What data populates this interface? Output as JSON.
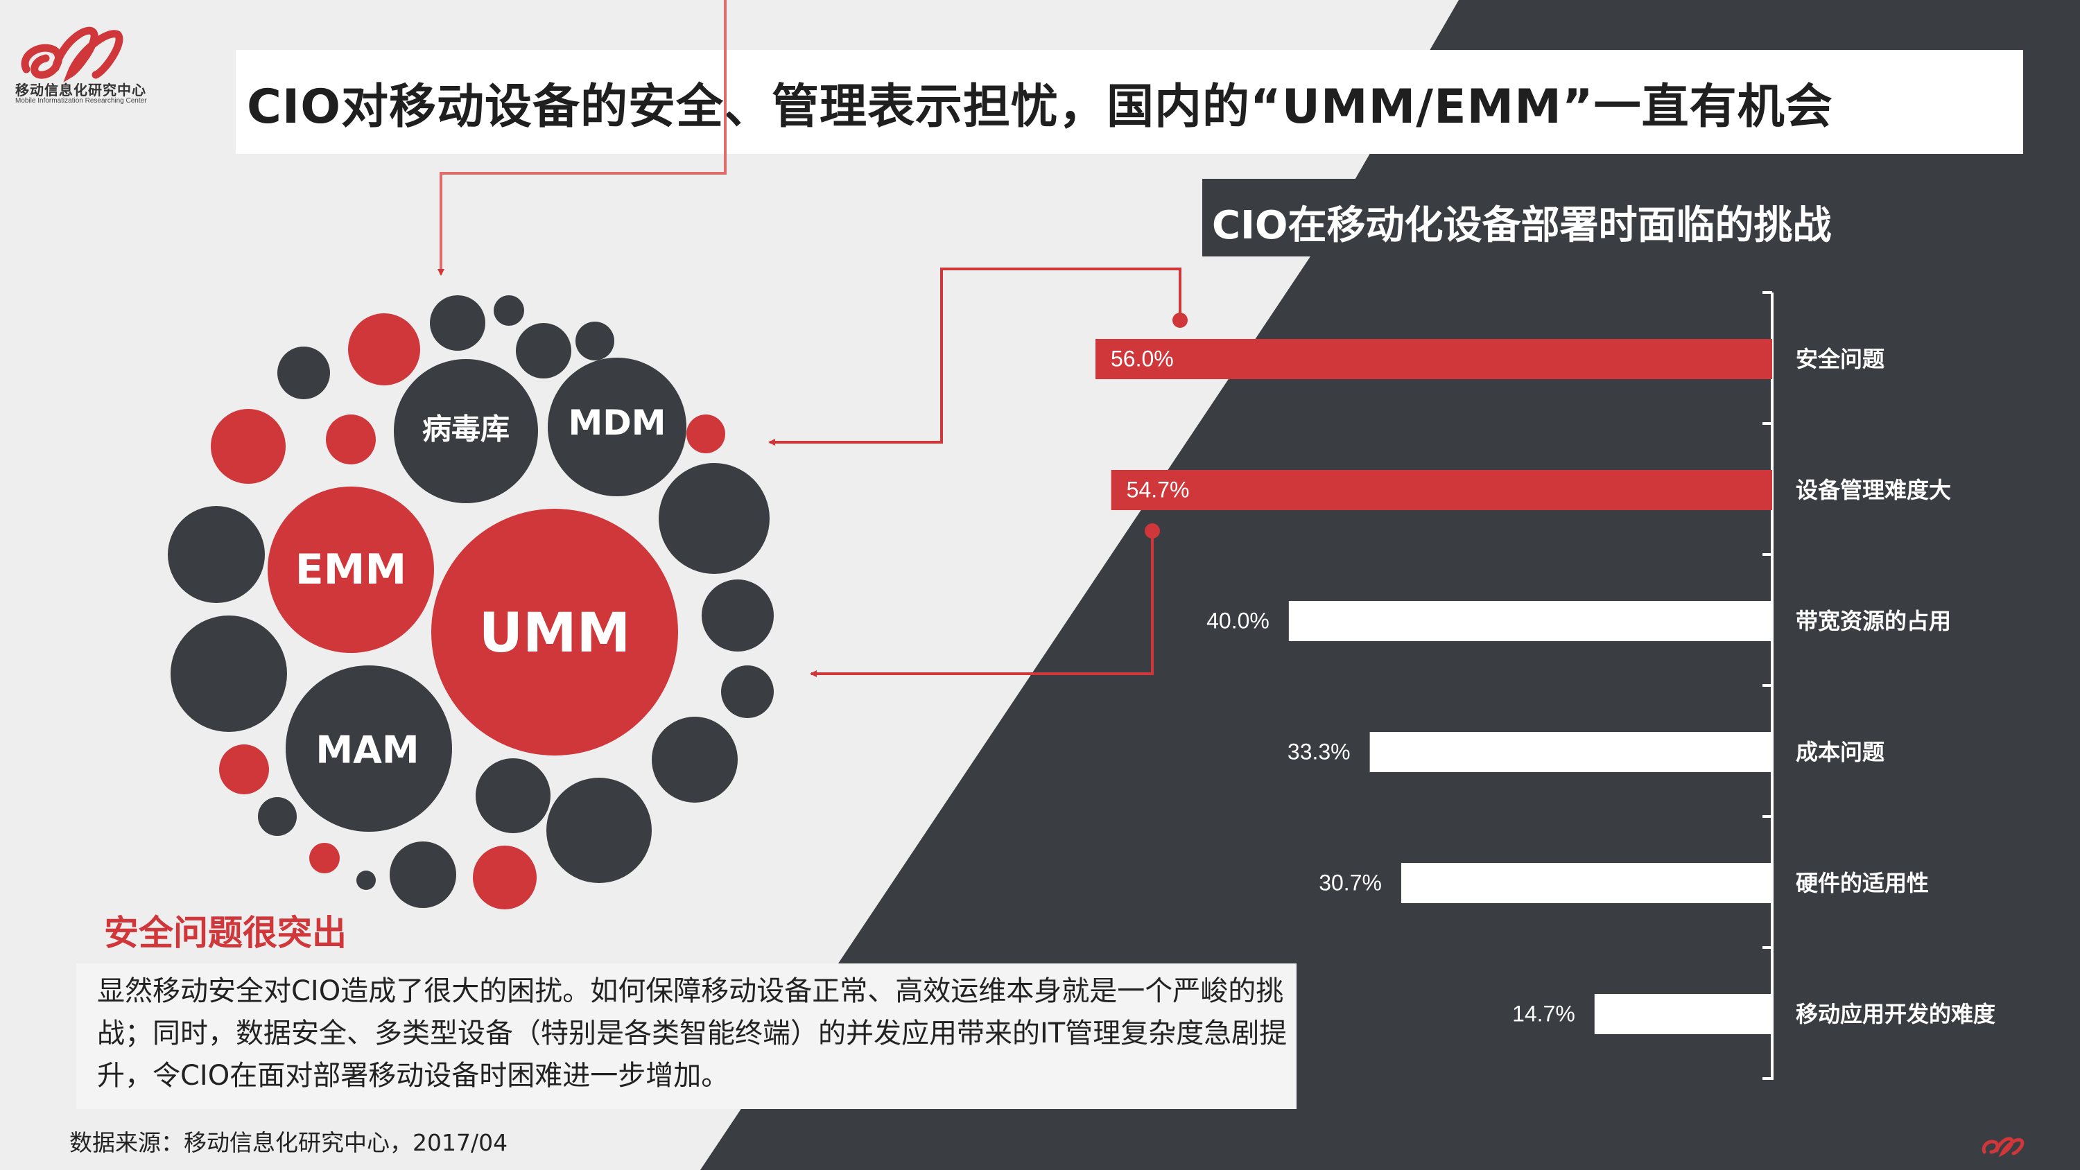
{
  "brand": {
    "name": "移动信息化研究中心",
    "subtitle": "Mobile Informatization Researching Center"
  },
  "page_title": "CIO对移动设备的安全、管理表示担忧，国内的“UMM/EMM”一直有机会",
  "colors": {
    "accent": "#d0373b",
    "dark": "#3a3d41",
    "background": "#efeeee",
    "bar_default": "#ffffff"
  },
  "bubbles": {
    "umm": "UMM",
    "emm": "EMM",
    "mam": "MAM",
    "mdm": "MDM",
    "virus": "病毒库"
  },
  "summary": {
    "heading": "安全问题很突出",
    "body": "显然移动安全对CIO造成了很大的困扰。如何保障移动设备正常、高效运维本身就是一个严峻的挑战；同时，数据安全、多类型设备（特别是各类智能终端）的并发应用带来的IT管理复杂度急剧提升，令CIO在面对部署移动设备时困难进一步增加。"
  },
  "source": "数据来源：移动信息化研究中心，2017/04",
  "chart_data": {
    "type": "bar",
    "orientation": "horizontal",
    "title": "CIO在移动化设备部署时面临的挑战",
    "categories": [
      "安全问题",
      "设备管理难度大",
      "带宽资源的占用",
      "成本问题",
      "硬件的适用性",
      "移动应用开发的难度"
    ],
    "values": [
      56.0,
      54.7,
      40.0,
      33.3,
      30.7,
      14.7
    ],
    "value_labels": [
      "56.0%",
      "54.7%",
      "40.0%",
      "33.3%",
      "30.7%",
      "14.7%"
    ],
    "highlighted": [
      true,
      true,
      false,
      false,
      false,
      false
    ],
    "unit": "%",
    "xlim": [
      0,
      60
    ],
    "grid": false,
    "legend": "none"
  }
}
